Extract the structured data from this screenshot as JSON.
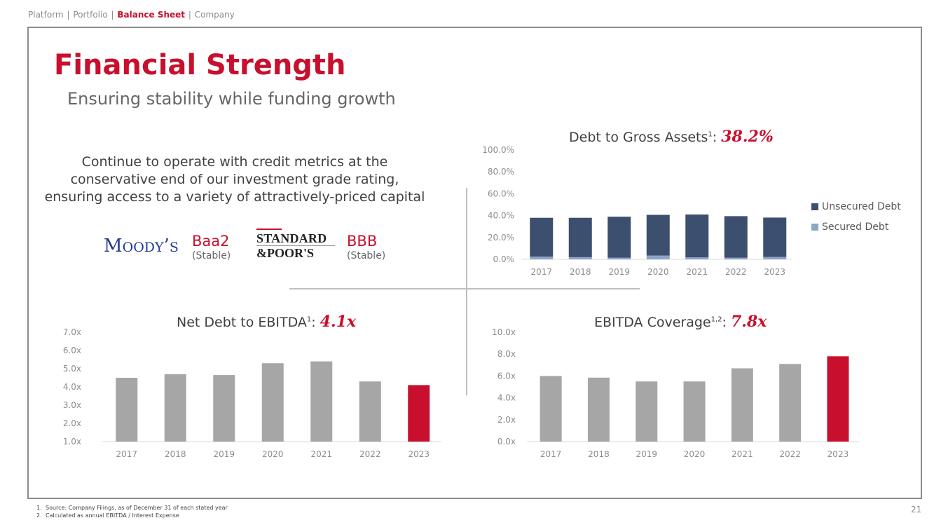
{
  "breadcrumb": {
    "items": [
      "Platform",
      "Portfolio",
      "Balance Sheet",
      "Company"
    ],
    "separator": "|",
    "active_index": 2
  },
  "header": {
    "title": "Financial Strength",
    "subtitle": "Ensuring stability while funding growth"
  },
  "statement": {
    "lines": [
      "Continue to operate with credit metrics at the",
      "conservative end of our investment grade rating,",
      "ensuring access to a variety of attractively-priced capital"
    ]
  },
  "ratings": {
    "moodys": {
      "logo_text": "MOODY'S",
      "grade": "Baa2",
      "outlook": "(Stable)"
    },
    "sp": {
      "logo_line1": "STANDARD",
      "logo_line2": "&POOR'S",
      "grade": "BBB",
      "outlook": "(Stable)"
    }
  },
  "colors": {
    "accent_red": "#c8102e",
    "bar_gray": "#a6a6a6",
    "unsecured": "#3d4f6e",
    "secured": "#8ea4c8"
  },
  "chart_data": [
    {
      "id": "debt-to-gross-assets",
      "type": "bar",
      "stacked": true,
      "title": "Debt to Gross Assets",
      "title_footnote": "1",
      "highlight": "38.2%",
      "categories": [
        "2017",
        "2018",
        "2019",
        "2020",
        "2021",
        "2022",
        "2023"
      ],
      "series": [
        {
          "name": "Secured Debt",
          "color": "#8ea4c8",
          "values": [
            2.5,
            2.0,
            1.5,
            3.5,
            1.8,
            1.5,
            2.2
          ]
        },
        {
          "name": "Unsecured Debt",
          "color": "#3d4f6e",
          "values": [
            35.5,
            36.0,
            37.5,
            37.2,
            39.2,
            38.0,
            36.0
          ]
        }
      ],
      "y_ticks": [
        "0.0%",
        "20.0%",
        "40.0%",
        "60.0%",
        "80.0%",
        "100.0%"
      ],
      "ylim": [
        0,
        100
      ],
      "grid": false,
      "legend_position": "right"
    },
    {
      "id": "net-debt-to-ebitda",
      "type": "bar",
      "title": "Net Debt to EBITDA",
      "title_footnote": "1",
      "highlight": "4.1x",
      "categories": [
        "2017",
        "2018",
        "2019",
        "2020",
        "2021",
        "2022",
        "2023"
      ],
      "values": [
        4.5,
        4.7,
        4.65,
        5.3,
        5.4,
        4.3,
        4.1
      ],
      "highlight_index": 6,
      "y_ticks": [
        "1.0x",
        "2.0x",
        "3.0x",
        "4.0x",
        "5.0x",
        "6.0x",
        "7.0x"
      ],
      "ylim": [
        1,
        7
      ],
      "grid": false
    },
    {
      "id": "ebitda-coverage",
      "type": "bar",
      "title": "EBITDA Coverage",
      "title_footnote": "1,2",
      "highlight": "7.8x",
      "categories": [
        "2017",
        "2018",
        "2019",
        "2020",
        "2021",
        "2022",
        "2023"
      ],
      "values": [
        6.0,
        5.85,
        5.5,
        5.5,
        6.7,
        7.1,
        7.8
      ],
      "highlight_index": 6,
      "y_ticks": [
        "0.0x",
        "2.0x",
        "4.0x",
        "6.0x",
        "8.0x",
        "10.0x"
      ],
      "ylim": [
        0,
        10
      ],
      "grid": false
    }
  ],
  "footnotes": [
    {
      "num": "1.",
      "text": "Source: Company Filings, as of December 31 of each stated year"
    },
    {
      "num": "2.",
      "text": "Calculated as annual EBITDA / Interest Expense"
    }
  ],
  "page_number": "21"
}
